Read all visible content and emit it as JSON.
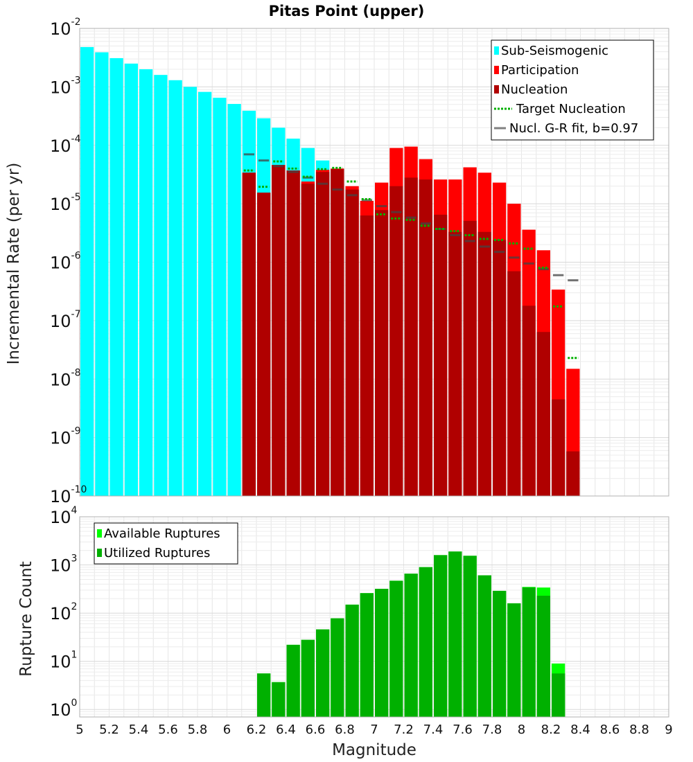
{
  "title": "Pitas Point (upper)",
  "chart_data": [
    {
      "type": "bar",
      "ylabel": "Incremental Rate (per yr)",
      "xlabel": "",
      "yscale": "log",
      "ylim": [
        1e-10,
        0.01
      ],
      "xlim": [
        5,
        9
      ],
      "ytick_labels": [
        {
          "base": "10",
          "exp": "-10",
          "value": 1e-10
        },
        {
          "base": "10",
          "exp": "-9",
          "value": 1e-09
        },
        {
          "base": "10",
          "exp": "-8",
          "value": 1e-08
        },
        {
          "base": "10",
          "exp": "-7",
          "value": 1e-07
        },
        {
          "base": "10",
          "exp": "-6",
          "value": 1e-06
        },
        {
          "base": "10",
          "exp": "-5",
          "value": 1e-05
        },
        {
          "base": "10",
          "exp": "-4",
          "value": 0.0001
        },
        {
          "base": "10",
          "exp": "-3",
          "value": 0.001
        },
        {
          "base": "10",
          "exp": "-2",
          "value": 0.01
        }
      ],
      "grid": true,
      "legend_position": "top-right",
      "legend": [
        {
          "label": "Sub-Seismogenic",
          "color": "#00ffff",
          "style": "bar"
        },
        {
          "label": "Participation",
          "color": "#ff0000",
          "style": "bar"
        },
        {
          "label": "Nucleation",
          "color": "#b00000",
          "style": "bar"
        },
        {
          "label": "Target Nucleation",
          "color": "#00b000",
          "style": "dotted"
        },
        {
          "label": "Nucl. G-R fit, b=0.97",
          "color": "#808080",
          "style": "line"
        }
      ],
      "series": [
        {
          "name": "Sub-Seismogenic",
          "color": "#00ffff",
          "x": [
            5.05,
            5.15,
            5.25,
            5.35,
            5.45,
            5.55,
            5.65,
            5.75,
            5.85,
            5.95,
            6.05,
            6.15,
            6.25,
            6.35,
            6.45,
            6.55,
            6.65,
            6.75
          ],
          "values": [
            0.0048,
            0.0039,
            0.0031,
            0.0025,
            0.002,
            0.0016,
            0.0013,
            0.001,
            0.00082,
            0.00065,
            0.00051,
            0.00039,
            0.00029,
            0.0002,
            0.00013,
            9e-05,
            5.5e-05,
            3.5e-05
          ]
        },
        {
          "name": "Participation",
          "color": "#ff0000",
          "x": [
            6.15,
            6.25,
            6.35,
            6.45,
            6.55,
            6.65,
            6.75,
            6.85,
            6.95,
            7.05,
            7.15,
            7.25,
            7.35,
            7.45,
            7.55,
            7.65,
            7.75,
            7.85,
            7.95,
            8.05,
            8.15,
            8.25,
            8.35
          ],
          "values": [
            3.4e-05,
            1.55e-05,
            4.6e-05,
            3.7e-05,
            2.4e-05,
            3.8e-05,
            4e-05,
            2e-05,
            1.12e-05,
            2.3e-05,
            9e-05,
            9.5e-05,
            5.8e-05,
            2.6e-05,
            2.6e-05,
            4.2e-05,
            3.4e-05,
            2.3e-05,
            1e-05,
            3.6e-06,
            1.6e-06,
            3.4e-07,
            1.5e-08
          ]
        },
        {
          "name": "Nucleation",
          "color": "#b00000",
          "x": [
            6.15,
            6.25,
            6.35,
            6.45,
            6.55,
            6.65,
            6.75,
            6.85,
            6.95,
            7.05,
            7.15,
            7.25,
            7.35,
            7.45,
            7.55,
            7.65,
            7.75,
            7.85,
            7.95,
            8.05,
            8.15,
            8.25,
            8.35
          ],
          "values": [
            3.4e-05,
            1.55e-05,
            4.6e-05,
            3.7e-05,
            2.2e-05,
            3.5e-05,
            3.9e-05,
            1.75e-05,
            6.3e-06,
            7.8e-06,
            2e-05,
            2.8e-05,
            2.6e-05,
            6.5e-06,
            3.3e-06,
            5.1e-06,
            3.3e-06,
            2.4e-06,
            7e-07,
            1.8e-07,
            6.4e-08,
            4.5e-09,
            5.8e-10
          ]
        },
        {
          "name": "Target Nucleation",
          "color": "#00b000",
          "x": [
            6.15,
            6.25,
            6.35,
            6.45,
            6.55,
            6.65,
            6.75,
            6.85,
            6.95,
            7.05,
            7.15,
            7.25,
            7.35,
            7.45,
            7.55,
            7.65,
            7.75,
            7.85,
            7.95,
            8.05,
            8.15,
            8.25,
            8.35
          ],
          "values": [
            3.7e-05,
            1.95e-05,
            5.3e-05,
            4e-05,
            2.9e-05,
            3.9e-05,
            4.1e-05,
            2.4e-05,
            1.2e-05,
            6.6e-06,
            5.6e-06,
            5.3e-06,
            4.2e-06,
            3.7e-06,
            3.4e-06,
            2.9e-06,
            2.5e-06,
            2.4e-06,
            2.1e-06,
            1.7e-06,
            8e-07,
            1.75e-07,
            2.3e-08
          ]
        },
        {
          "name": "Nucl. G-R fit, b=0.97",
          "color": "#808080",
          "x": [
            6.15,
            6.25,
            6.35,
            6.45,
            6.55,
            6.65,
            6.75,
            6.85,
            6.95,
            7.05,
            7.15,
            7.25,
            7.35,
            7.45,
            7.55,
            7.65,
            7.75,
            7.85,
            7.95,
            8.05,
            8.15,
            8.25,
            8.35
          ],
          "values": [
            7e-05,
            5.5e-05,
            4.4e-05,
            3.5e-05,
            2.8e-05,
            2.2e-05,
            1.75e-05,
            1.4e-05,
            1.15e-05,
            9.1e-06,
            7.2e-06,
            5.8e-06,
            4.6e-06,
            3.7e-06,
            2.9e-06,
            2.3e-06,
            1.85e-06,
            1.5e-06,
            1.2e-06,
            9.5e-07,
            7.6e-07,
            6e-07,
            4.9e-07
          ]
        }
      ]
    },
    {
      "type": "bar",
      "ylabel": "Rupture Count",
      "xlabel": "Magnitude",
      "yscale": "log",
      "ylim": [
        0.7,
        10000
      ],
      "xlim": [
        5,
        9
      ],
      "ytick_labels": [
        {
          "base": "10",
          "exp": "0",
          "value": 1
        },
        {
          "base": "10",
          "exp": "1",
          "value": 10
        },
        {
          "base": "10",
          "exp": "2",
          "value": 100
        },
        {
          "base": "10",
          "exp": "3",
          "value": 1000
        },
        {
          "base": "10",
          "exp": "4",
          "value": 10000
        }
      ],
      "xtick_labels": [
        "5",
        "5.2",
        "5.4",
        "5.6",
        "5.8",
        "6",
        "6.2",
        "6.4",
        "6.6",
        "6.8",
        "7",
        "7.2",
        "7.4",
        "7.6",
        "7.8",
        "8",
        "8.2",
        "8.4",
        "8.6",
        "8.8",
        "9"
      ],
      "xticks": [
        5,
        5.2,
        5.4,
        5.6,
        5.8,
        6,
        6.2,
        6.4,
        6.6,
        6.8,
        7,
        7.2,
        7.4,
        7.6,
        7.8,
        8,
        8.2,
        8.4,
        8.6,
        8.8,
        9
      ],
      "grid": true,
      "legend_position": "top-left",
      "legend": [
        {
          "label": "Available Ruptures",
          "color": "#00ff00",
          "style": "bar"
        },
        {
          "label": "Utilized Ruptures",
          "color": "#00b000",
          "style": "bar"
        }
      ],
      "series": [
        {
          "name": "Available Ruptures",
          "color": "#00ff00",
          "x": [
            6.25,
            6.35,
            6.45,
            6.55,
            6.65,
            6.75,
            6.85,
            6.95,
            7.05,
            7.15,
            7.25,
            7.35,
            7.45,
            7.55,
            7.65,
            7.75,
            7.85,
            7.95,
            8.05,
            8.15,
            8.25
          ],
          "values": [
            5.6,
            3.7,
            22,
            28,
            46,
            78,
            150,
            260,
            320,
            470,
            660,
            900,
            1600,
            1900,
            1550,
            610,
            290,
            160,
            350,
            340,
            9
          ]
        },
        {
          "name": "Utilized Ruptures",
          "color": "#00b000",
          "x": [
            6.25,
            6.35,
            6.45,
            6.55,
            6.65,
            6.75,
            6.85,
            6.95,
            7.05,
            7.15,
            7.25,
            7.35,
            7.45,
            7.55,
            7.65,
            7.75,
            7.85,
            7.95,
            8.05,
            8.15,
            8.25
          ],
          "values": [
            5.6,
            3.7,
            22,
            28,
            46,
            78,
            150,
            260,
            320,
            470,
            660,
            900,
            1600,
            1900,
            1550,
            610,
            290,
            160,
            340,
            230,
            5.6
          ]
        }
      ]
    }
  ]
}
